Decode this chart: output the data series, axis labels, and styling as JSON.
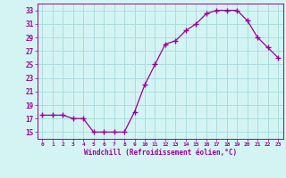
{
  "x": [
    0,
    1,
    2,
    3,
    4,
    5,
    6,
    7,
    8,
    9,
    10,
    11,
    12,
    13,
    14,
    15,
    16,
    17,
    18,
    19,
    20,
    21,
    22,
    23
  ],
  "y": [
    17.5,
    17.5,
    17.5,
    17,
    17,
    15,
    15,
    15,
    15,
    18,
    22,
    25,
    28,
    28.5,
    30,
    31,
    32.5,
    33,
    33,
    33,
    31.5,
    29,
    27.5,
    26
  ],
  "line_color": "#990099",
  "marker": "+",
  "marker_size": 4,
  "bg_color": "#d4f4f4",
  "grid_color": "#aadddd",
  "xlabel": "Windchill (Refroidissement éolien,°C)",
  "xlabel_color": "#990099",
  "tick_color": "#990099",
  "ylim": [
    14,
    34
  ],
  "xlim": [
    -0.5,
    23.5
  ],
  "yticks": [
    15,
    17,
    19,
    21,
    23,
    25,
    27,
    29,
    31,
    33
  ],
  "xticks": [
    0,
    1,
    2,
    3,
    4,
    5,
    6,
    7,
    8,
    9,
    10,
    11,
    12,
    13,
    14,
    15,
    16,
    17,
    18,
    19,
    20,
    21,
    22,
    23
  ],
  "figsize": [
    3.2,
    2.0
  ],
  "dpi": 100
}
